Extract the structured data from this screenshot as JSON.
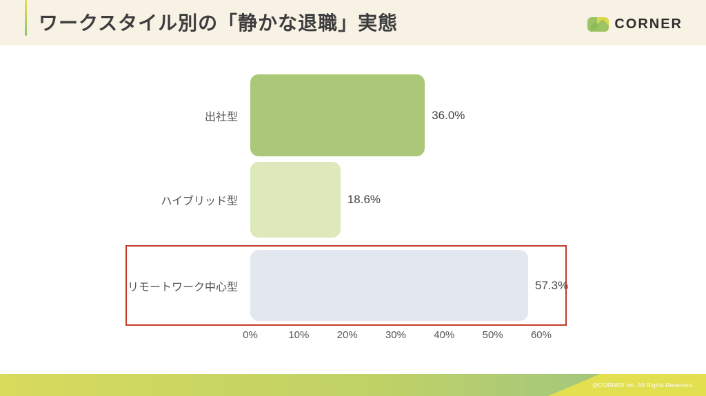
{
  "header": {
    "title": "ワークスタイル別の「静かな退職」実態",
    "logo_text": "CORNER"
  },
  "chart_data": {
    "type": "bar",
    "orientation": "horizontal",
    "title": "ワークスタイル別の「静かな退職」実態",
    "categories": [
      "出社型",
      "ハイブリッド型",
      "リモートワーク中心型"
    ],
    "values": [
      36.0,
      18.6,
      57.3
    ],
    "value_labels": [
      "36.0%",
      "18.6%",
      "57.3%"
    ],
    "bar_colors": [
      "#abc878",
      "#dde9ba",
      "#e3e8f0"
    ],
    "x_ticks": [
      "0%",
      "10%",
      "20%",
      "30%",
      "40%",
      "50%",
      "60%"
    ],
    "x_tick_values": [
      0,
      10,
      20,
      30,
      40,
      50,
      60
    ],
    "xlim": [
      0,
      60
    ],
    "grid": false,
    "legend": false,
    "highlight": {
      "category": "リモートワーク中心型",
      "border_color": "#c23b2b"
    }
  },
  "footer": {
    "copyright": "@CORNER Inc. All Rights Reserved."
  },
  "colors": {
    "header_background": "#f8f2e5",
    "accent_gradient_top": "#e8dc55",
    "accent_gradient_bottom": "#8fc56f",
    "title_text": "#3d3d3d",
    "highlight_red": "#c23b2b",
    "footer_green": "#a6c87b",
    "footer_yellow": "#e2df51",
    "logo_green": "#9cc464",
    "logo_yellow": "#d9d94b"
  }
}
